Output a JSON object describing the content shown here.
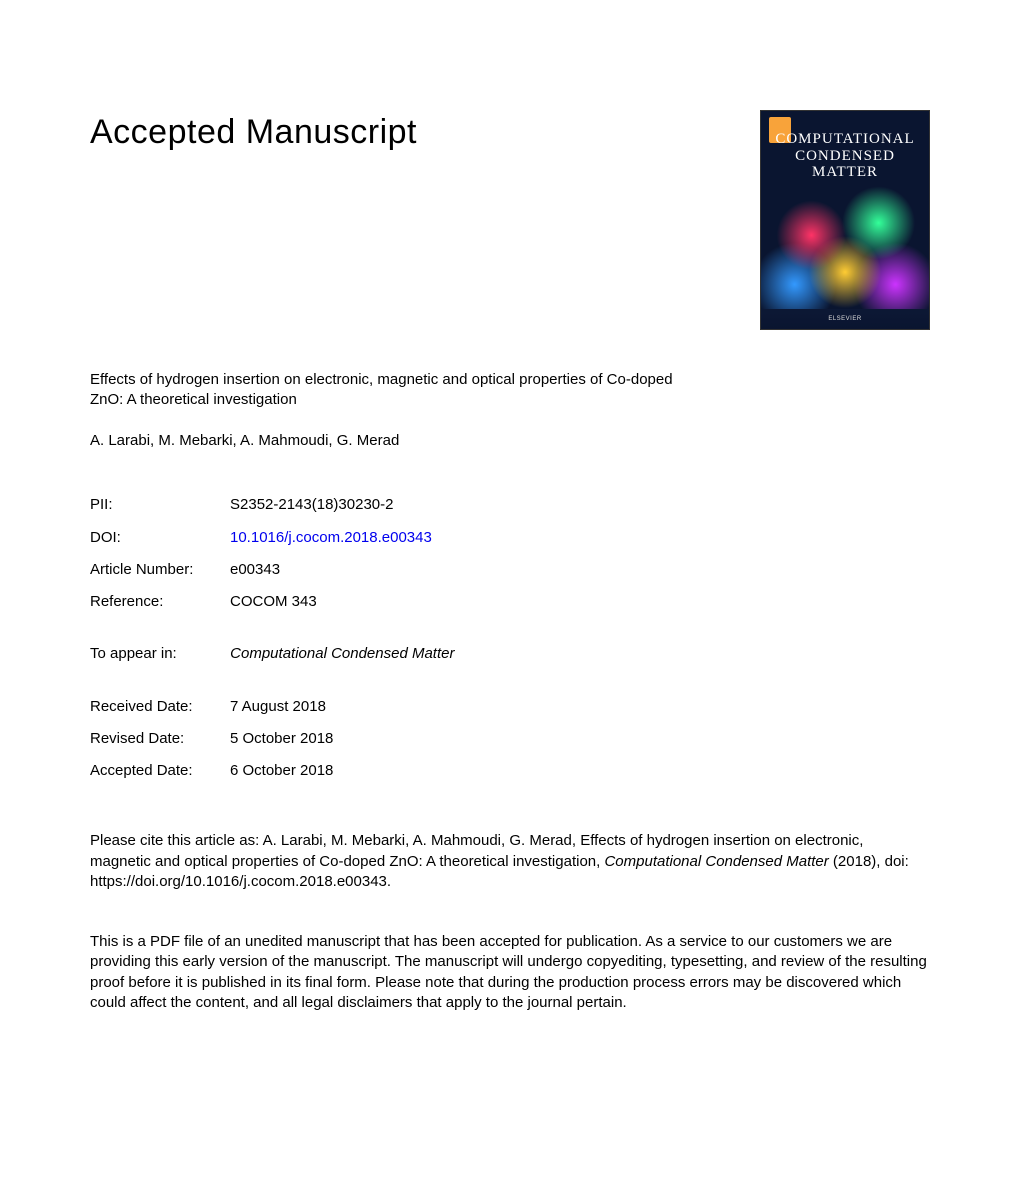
{
  "heading": "Accepted Manuscript",
  "cover": {
    "journal_line1": "COMPUTATIONAL",
    "journal_line2": "CONDENSED MATTER",
    "footer": "ELSEVIER"
  },
  "article": {
    "title": "Effects of hydrogen insertion on electronic, magnetic and optical properties of Co-doped ZnO: A theoretical investigation",
    "authors": "A. Larabi, M. Mebarki, A. Mahmoudi, G. Merad"
  },
  "meta": {
    "pii_label": "PII:",
    "pii_value": "S2352-2143(18)30230-2",
    "doi_label": "DOI:",
    "doi_value": "10.1016/j.cocom.2018.e00343",
    "article_number_label": "Article Number:",
    "article_number_value": "e00343",
    "reference_label": "Reference:",
    "reference_value": "COCOM 343"
  },
  "appear": {
    "label": "To appear in:",
    "journal": "Computational Condensed Matter"
  },
  "dates": {
    "received_label": "Received Date:",
    "received_value": "7 August 2018",
    "revised_label": "Revised Date:",
    "revised_value": "5 October 2018",
    "accepted_label": "Accepted Date:",
    "accepted_value": "6 October 2018"
  },
  "citation": {
    "prefix": "Please cite this article as: A. Larabi, M. Mebarki, A. Mahmoudi, G. Merad, Effects of hydrogen insertion on electronic, magnetic and optical properties of Co-doped ZnO: A theoretical investigation, ",
    "journal_italic": "Computational Condensed Matter",
    "suffix": " (2018), doi: https://doi.org/10.1016/j.cocom.2018.e00343."
  },
  "disclaimer": "This is a PDF file of an unedited manuscript that has been accepted for publication. As a service to our customers we are providing this early version of the manuscript. The manuscript will undergo copyediting, typesetting, and review of the resulting proof before it is published in its final form. Please note that during the production process errors may be discovered which could affect the content, and all legal disclaimers that apply to the journal pertain."
}
